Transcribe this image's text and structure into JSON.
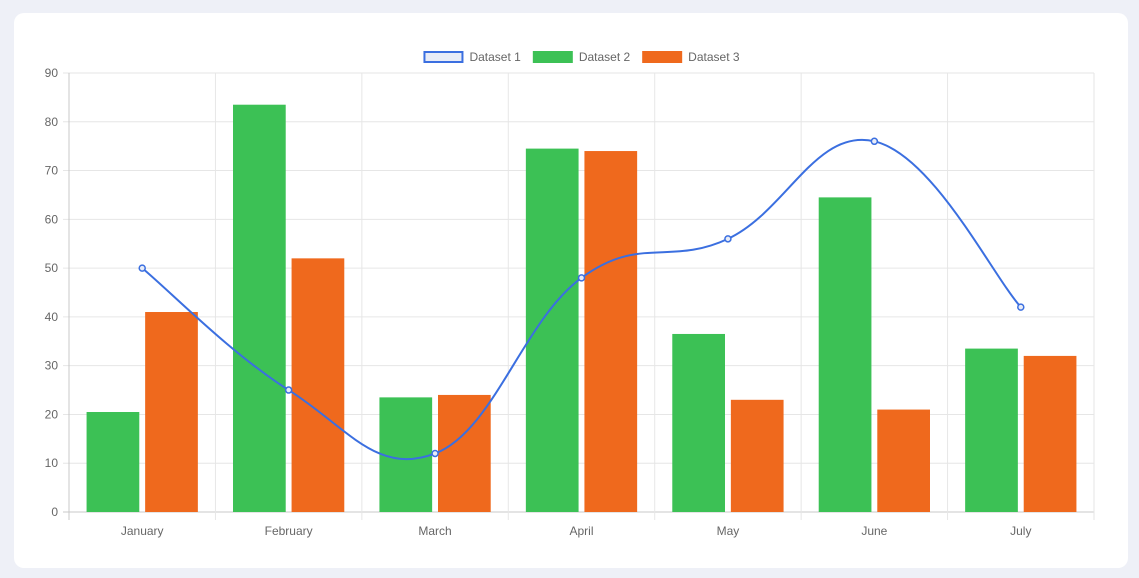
{
  "chart_data": {
    "type": "bar",
    "title": "",
    "xlabel": "",
    "ylabel": "",
    "categories": [
      "January",
      "February",
      "March",
      "April",
      "May",
      "June",
      "July"
    ],
    "ylim": [
      0,
      90
    ],
    "yticks": [
      0,
      10,
      20,
      30,
      40,
      50,
      60,
      70,
      80,
      90
    ],
    "grid": true,
    "legend_position": "top-center",
    "series": [
      {
        "name": "Dataset 1",
        "kind": "line",
        "smooth": true,
        "color": "#3b6fe0",
        "fill": "#e8ecf7",
        "values": [
          50,
          25,
          12,
          48,
          56,
          76,
          42
        ]
      },
      {
        "name": "Dataset 2",
        "kind": "bar",
        "color": "#3cc155",
        "values": [
          20.5,
          83.5,
          23.5,
          74.5,
          36.5,
          64.5,
          33.5
        ]
      },
      {
        "name": "Dataset 3",
        "kind": "bar",
        "color": "#ef691d",
        "values": [
          41,
          52,
          24,
          74,
          23,
          21,
          32
        ]
      }
    ]
  }
}
